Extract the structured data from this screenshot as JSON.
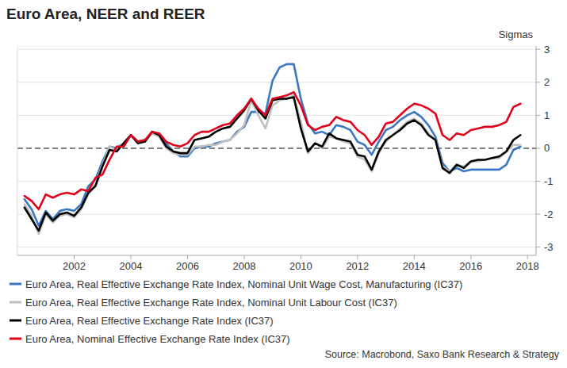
{
  "chart_data": {
    "type": "line",
    "title": "Euro Area, NEER and REER",
    "y_label": "Sigmas",
    "source": "Source: Macrobond, Saxo Bank Research & Strategy",
    "legend": "bottom",
    "grid": true,
    "xlim": [
      2000,
      2018.3
    ],
    "xticks": [
      2002,
      2004,
      2006,
      2008,
      2010,
      2012,
      2014,
      2016,
      2018
    ],
    "ylim": [
      -3.25,
      3.1
    ],
    "yticks": [
      3,
      2,
      1,
      0,
      -1,
      -2,
      -3
    ],
    "x": [
      2000.25,
      2000.5,
      2000.75,
      2001,
      2001.25,
      2001.5,
      2001.75,
      2002,
      2002.25,
      2002.5,
      2002.75,
      2003,
      2003.25,
      2003.5,
      2003.75,
      2004,
      2004.25,
      2004.5,
      2004.75,
      2005,
      2005.25,
      2005.5,
      2005.75,
      2006,
      2006.25,
      2006.5,
      2006.75,
      2007,
      2007.25,
      2007.5,
      2007.75,
      2008,
      2008.25,
      2008.5,
      2008.75,
      2009,
      2009.25,
      2009.5,
      2009.75,
      2010,
      2010.25,
      2010.5,
      2010.75,
      2011,
      2011.25,
      2011.5,
      2011.75,
      2012,
      2012.25,
      2012.5,
      2012.75,
      2013,
      2013.25,
      2013.5,
      2013.75,
      2014,
      2014.25,
      2014.5,
      2014.75,
      2015,
      2015.25,
      2015.5,
      2015.75,
      2016,
      2016.25,
      2016.5,
      2016.75,
      2017,
      2017.25,
      2017.5,
      2017.75
    ],
    "series": [
      {
        "name": "Euro Area, Real Effective Exchange Rate Index, Nominal Unit Wage Cost, Manufacturing (IC37)",
        "color": "#3a78c3",
        "values": [
          -1.55,
          -1.85,
          -2.35,
          -1.9,
          -2.15,
          -1.9,
          -1.85,
          -1.9,
          -1.7,
          -1.15,
          -0.95,
          -0.4,
          0.05,
          0.0,
          0.15,
          0.4,
          0.2,
          0.25,
          0.45,
          0.45,
          0.15,
          -0.1,
          -0.25,
          -0.25,
          0.0,
          0.05,
          0.05,
          0.15,
          0.2,
          0.25,
          0.5,
          0.65,
          1.1,
          1.1,
          1.05,
          2.05,
          2.45,
          2.55,
          2.55,
          1.5,
          0.75,
          0.45,
          0.5,
          0.4,
          0.7,
          0.65,
          0.55,
          0.2,
          0.1,
          -0.2,
          0.2,
          0.55,
          0.65,
          0.85,
          1.0,
          1.1,
          0.95,
          0.7,
          0.35,
          -0.45,
          -0.7,
          -0.6,
          -0.7,
          -0.65,
          -0.65,
          -0.65,
          -0.65,
          -0.65,
          -0.5,
          -0.05,
          0.05
        ]
      },
      {
        "name": "Euro Area, Real Effective Exchange Rate Index, Nominal Unit Labour Cost (IC37)",
        "color": "#c0c0c0",
        "values": [
          -1.7,
          -2.05,
          -2.6,
          -2.0,
          -2.25,
          -2.05,
          -2.0,
          -2.1,
          -1.85,
          -1.4,
          -1.1,
          -0.5,
          0.05,
          -0.05,
          0.15,
          0.4,
          0.2,
          0.2,
          0.45,
          0.35,
          0.0,
          -0.15,
          -0.2,
          -0.2,
          0.05,
          0.05,
          0.1,
          0.1,
          0.2,
          0.25,
          0.45,
          0.7,
          1.45,
          1.0,
          0.6,
          1.3,
          1.45,
          1.5,
          1.6,
          0.8,
          -0.15,
          0.15,
          0.0,
          0.35,
          0.3,
          0.2,
          0.15,
          -0.25,
          -0.35,
          -0.7,
          -0.15,
          0.2,
          0.4,
          0.6,
          0.8,
          0.9,
          0.75,
          0.45,
          0.25,
          -0.55,
          -0.7,
          -0.5,
          -0.55,
          -0.4,
          -0.4,
          -0.35,
          -0.3,
          -0.3,
          -0.1,
          0.1,
          0.1
        ]
      },
      {
        "name": "Euro Area, Real Effective Exchange Rate Index (IC37)",
        "color": "#000000",
        "values": [
          -1.8,
          -2.15,
          -2.5,
          -1.95,
          -2.2,
          -2.0,
          -1.95,
          -2.05,
          -1.8,
          -1.35,
          -1.15,
          -0.55,
          -0.05,
          -0.1,
          0.15,
          0.4,
          0.15,
          0.2,
          0.5,
          0.4,
          0.05,
          -0.1,
          -0.15,
          -0.15,
          0.25,
          0.3,
          0.35,
          0.5,
          0.6,
          0.65,
          0.9,
          1.15,
          1.5,
          1.15,
          0.9,
          1.45,
          1.5,
          1.5,
          1.55,
          0.6,
          -0.1,
          0.15,
          0.05,
          0.45,
          0.3,
          0.25,
          0.2,
          -0.2,
          -0.25,
          -0.65,
          -0.1,
          0.25,
          0.4,
          0.55,
          0.75,
          0.85,
          0.7,
          0.4,
          0.25,
          -0.6,
          -0.75,
          -0.5,
          -0.6,
          -0.4,
          -0.35,
          -0.35,
          -0.3,
          -0.25,
          -0.1,
          0.25,
          0.4
        ]
      },
      {
        "name": "Euro Area, Nominal Effective Exchange Rate Index (IC37)",
        "color": "#e2001a",
        "values": [
          -1.45,
          -1.6,
          -1.85,
          -1.4,
          -1.5,
          -1.4,
          -1.35,
          -1.4,
          -1.25,
          -1.3,
          -0.9,
          -0.8,
          -0.35,
          0.05,
          0.05,
          0.4,
          0.2,
          0.25,
          0.5,
          0.45,
          0.2,
          0.1,
          0.05,
          0.15,
          0.4,
          0.5,
          0.5,
          0.6,
          0.7,
          0.75,
          1.0,
          1.2,
          1.5,
          1.2,
          1.0,
          1.5,
          1.55,
          1.6,
          1.7,
          1.3,
          0.7,
          0.55,
          0.65,
          0.7,
          0.95,
          0.85,
          0.8,
          0.55,
          0.4,
          0.1,
          0.35,
          0.75,
          0.8,
          1.0,
          1.2,
          1.35,
          1.3,
          1.2,
          1.05,
          0.4,
          0.25,
          0.45,
          0.4,
          0.55,
          0.6,
          0.65,
          0.65,
          0.7,
          0.8,
          1.25,
          1.35
        ]
      }
    ]
  }
}
